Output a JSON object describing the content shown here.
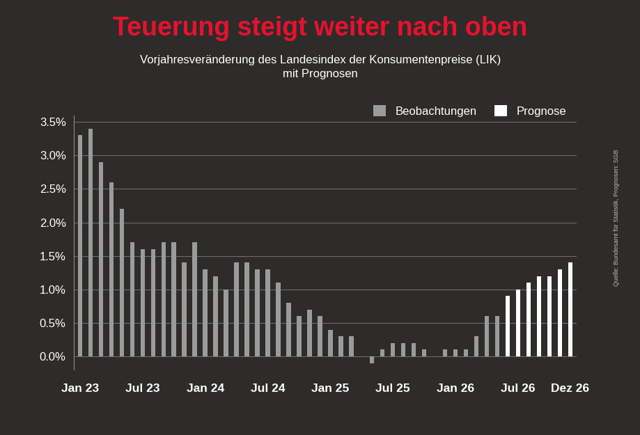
{
  "chart_data": {
    "type": "bar",
    "title": "Teuerung steigt weiter nach oben",
    "subtitle": "Vorjahresveränderung des Landesindex der Konsumentenpreise (LIK)\nmit Prognosen",
    "source": "Quelle: Bundesamt für Statistik, Prognosen: SGB",
    "categories": [
      "Jan 23",
      null,
      null,
      null,
      null,
      null,
      "Jul 23",
      null,
      null,
      null,
      null,
      null,
      "Jan 24",
      null,
      null,
      null,
      null,
      null,
      "Jul 24",
      null,
      null,
      null,
      null,
      null,
      "Jan 25",
      null,
      null,
      null,
      null,
      null,
      "Jul 25",
      null,
      null,
      null,
      null,
      null,
      "Jan 26",
      null,
      null,
      null,
      null,
      null,
      "Jul 26",
      null,
      null,
      null,
      null,
      "Dez 26"
    ],
    "series": [
      {
        "name": "Beobachtungen",
        "color": "#9b9b9b",
        "values": [
          3.3,
          3.4,
          2.9,
          2.6,
          2.2,
          1.7,
          1.6,
          1.6,
          1.7,
          1.7,
          1.4,
          1.7,
          1.3,
          1.2,
          1.0,
          1.4,
          1.4,
          1.3,
          1.3,
          1.1,
          0.8,
          0.6,
          0.7,
          0.6,
          0.4,
          0.3,
          0.3,
          0.0,
          -0.1,
          0.1,
          0.2,
          0.2,
          0.2,
          0.1,
          0.0,
          0.1,
          0.1,
          0.1,
          0.3,
          0.6,
          0.6,
          null,
          null,
          null,
          null,
          null,
          null,
          null
        ]
      },
      {
        "name": "Prognose",
        "color": "#ffffff",
        "values": [
          null,
          null,
          null,
          null,
          null,
          null,
          null,
          null,
          null,
          null,
          null,
          null,
          null,
          null,
          null,
          null,
          null,
          null,
          null,
          null,
          null,
          null,
          null,
          null,
          null,
          null,
          null,
          null,
          null,
          null,
          null,
          null,
          null,
          null,
          null,
          null,
          null,
          null,
          null,
          null,
          null,
          0.9,
          1.0,
          1.1,
          1.2,
          1.2,
          1.3,
          1.4
        ]
      }
    ],
    "ylim": [
      -0.2,
      3.6
    ],
    "yticks": [
      {
        "value": 0.0,
        "label": "0.0%"
      },
      {
        "value": 0.5,
        "label": "0.5%"
      },
      {
        "value": 1.0,
        "label": "1.0%"
      },
      {
        "value": 1.5,
        "label": "1.5%"
      },
      {
        "value": 2.0,
        "label": "2.0%"
      },
      {
        "value": 2.5,
        "label": "2.5%"
      },
      {
        "value": 3.0,
        "label": "3.0%"
      },
      {
        "value": 3.5,
        "label": "3.5%"
      }
    ],
    "grid": true,
    "legend": "upper right"
  }
}
